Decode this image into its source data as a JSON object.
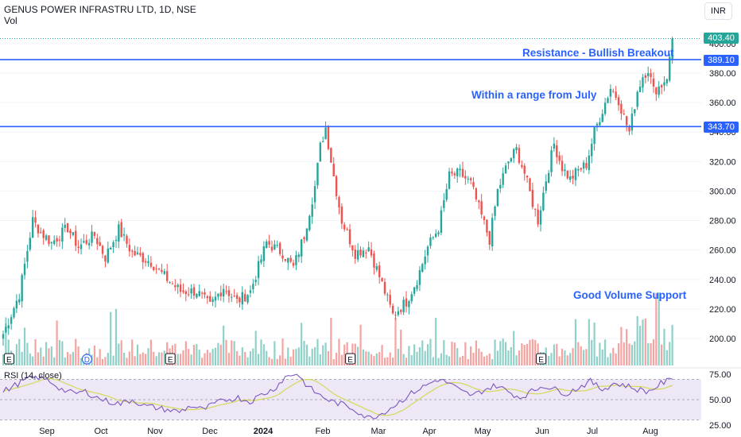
{
  "header": {
    "title": "GENUS POWER INFRASTRU LTD, 1D, NSE",
    "vol_label": "Vol",
    "currency_button": "INR"
  },
  "annotations": {
    "breakout": "Resistance - Bullish Breakout",
    "range": "Within a range from July",
    "volume": "Good Volume Support"
  },
  "price_tags": {
    "last": "403.40",
    "resistance": "389.10",
    "support": "343.70"
  },
  "rsi": {
    "label": "RSI (14, close)",
    "ticks": [
      "75.00",
      "50.00",
      "25.00"
    ]
  },
  "colors": {
    "up": "#26a69a",
    "down": "#ef5350",
    "vol_up": "#8fd1c9",
    "vol_down": "#f5a3a1",
    "line": "#2962ff",
    "rsi": "#7e57c2",
    "rsi_ma": "#d4d957",
    "rsi_band": "#ede7f6",
    "last": "#26a69a"
  },
  "chart_data": [
    {
      "type": "candlestick",
      "title": "GENUS POWER INFRASTRU LTD, 1D, NSE",
      "ylim": [
        185,
        410
      ],
      "y_ticks": [
        200,
        220,
        240,
        260,
        280,
        300,
        320,
        340,
        360,
        380,
        400
      ],
      "y_tick_labels": [
        "200.00",
        "220.00",
        "240.00",
        "260.00",
        "280.00",
        "300.00",
        "320.00",
        "340.00",
        "360.00",
        "380.00",
        "400.00"
      ],
      "x_tick_labels": [
        "Sep",
        "Oct",
        "Nov",
        "Dec",
        "2024",
        "Feb",
        "Mar",
        "Apr",
        "May",
        "Jun",
        "Jul",
        "Aug"
      ],
      "horizontal_lines": [
        389.1,
        343.7
      ],
      "last_price": 403.4,
      "event_markers": [
        "E",
        "D",
        "E",
        "E",
        "E"
      ],
      "close_path": [
        {
          "i": 0,
          "v": 203
        },
        {
          "i": 6,
          "v": 230
        },
        {
          "i": 11,
          "v": 280
        },
        {
          "i": 14,
          "v": 272
        },
        {
          "i": 18,
          "v": 265
        },
        {
          "i": 24,
          "v": 275
        },
        {
          "i": 28,
          "v": 262
        },
        {
          "i": 34,
          "v": 270
        },
        {
          "i": 38,
          "v": 255
        },
        {
          "i": 43,
          "v": 274
        },
        {
          "i": 48,
          "v": 258
        },
        {
          "i": 55,
          "v": 252
        },
        {
          "i": 60,
          "v": 242
        },
        {
          "i": 66,
          "v": 232
        },
        {
          "i": 72,
          "v": 232
        },
        {
          "i": 77,
          "v": 222
        },
        {
          "i": 82,
          "v": 235
        },
        {
          "i": 87,
          "v": 225
        },
        {
          "i": 92,
          "v": 232
        },
        {
          "i": 98,
          "v": 265
        },
        {
          "i": 104,
          "v": 258
        },
        {
          "i": 108,
          "v": 248
        },
        {
          "i": 112,
          "v": 270
        },
        {
          "i": 116,
          "v": 303
        },
        {
          "i": 118,
          "v": 330
        },
        {
          "i": 120,
          "v": 343
        },
        {
          "i": 123,
          "v": 310
        },
        {
          "i": 126,
          "v": 280
        },
        {
          "i": 131,
          "v": 258
        },
        {
          "i": 136,
          "v": 262
        },
        {
          "i": 140,
          "v": 242
        },
        {
          "i": 145,
          "v": 216
        },
        {
          "i": 150,
          "v": 225
        },
        {
          "i": 154,
          "v": 240
        },
        {
          "i": 158,
          "v": 262
        },
        {
          "i": 162,
          "v": 275
        },
        {
          "i": 166,
          "v": 310
        },
        {
          "i": 170,
          "v": 312
        },
        {
          "i": 174,
          "v": 305
        },
        {
          "i": 178,
          "v": 283
        },
        {
          "i": 181,
          "v": 267
        },
        {
          "i": 184,
          "v": 300
        },
        {
          "i": 188,
          "v": 320
        },
        {
          "i": 191,
          "v": 328
        },
        {
          "i": 194,
          "v": 312
        },
        {
          "i": 197,
          "v": 292
        },
        {
          "i": 199,
          "v": 280
        },
        {
          "i": 202,
          "v": 308
        },
        {
          "i": 205,
          "v": 332
        },
        {
          "i": 208,
          "v": 316
        },
        {
          "i": 211,
          "v": 308
        },
        {
          "i": 214,
          "v": 314
        },
        {
          "i": 217,
          "v": 318
        },
        {
          "i": 220,
          "v": 340
        },
        {
          "i": 223,
          "v": 355
        },
        {
          "i": 226,
          "v": 370
        },
        {
          "i": 229,
          "v": 362
        },
        {
          "i": 231,
          "v": 350
        },
        {
          "i": 233,
          "v": 340
        },
        {
          "i": 236,
          "v": 368
        },
        {
          "i": 238,
          "v": 378
        },
        {
          "i": 240,
          "v": 383
        },
        {
          "i": 242,
          "v": 368
        },
        {
          "i": 245,
          "v": 372
        },
        {
          "i": 247,
          "v": 378
        },
        {
          "i": 248,
          "v": 389
        },
        {
          "i": 249,
          "v": 403.4
        }
      ],
      "volume_note": "Good Volume Support"
    },
    {
      "type": "line",
      "title": "RSI (14, close)",
      "ylim": [
        25,
        80
      ],
      "bands": [
        70,
        30
      ],
      "y_ticks": [
        75,
        50,
        25
      ],
      "series": [
        {
          "values": [
            58,
            64,
            70,
            72,
            68,
            60,
            56,
            58,
            52,
            48,
            46,
            50,
            44,
            42,
            40,
            38,
            44,
            40,
            46,
            50,
            52,
            48,
            55,
            60,
            72,
            76,
            62,
            54,
            48,
            45,
            40,
            32,
            35,
            42,
            50,
            58,
            64,
            70,
            66,
            58,
            54,
            60,
            64,
            58,
            52,
            58,
            64,
            60,
            56,
            62,
            68,
            60,
            66,
            64,
            60,
            58,
            66,
            70
          ]
        }
      ]
    }
  ]
}
